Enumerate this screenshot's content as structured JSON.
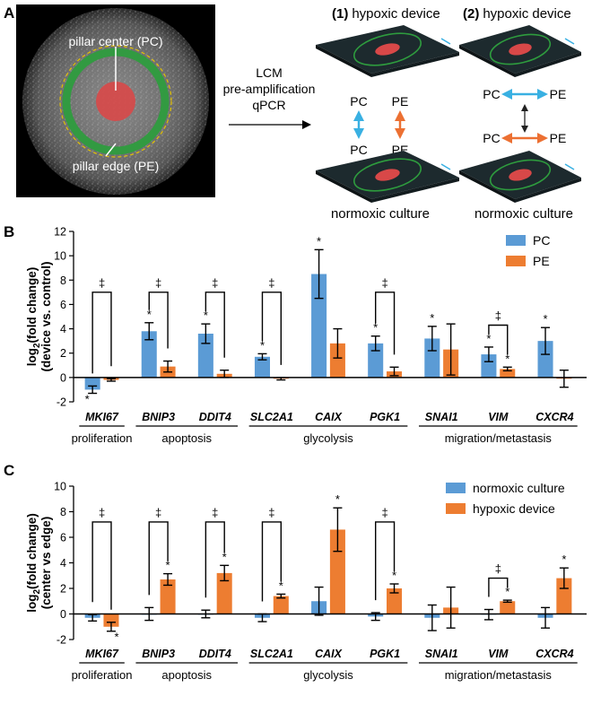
{
  "panel_a": {
    "letter": "A",
    "micrograph": {
      "pc_label": "pillar center (PC)",
      "pe_label": "pillar edge (PE)"
    },
    "process_lines": [
      "LCM",
      "pre-amplification",
      "qPCR"
    ],
    "scheme1": {
      "title_num": "(1)",
      "title": "hypoxic device",
      "bottom": "normoxic culture",
      "pc_top": "PC",
      "pe_top": "PE",
      "pc_bottom": "PC",
      "pe_bottom": "PE"
    },
    "scheme2": {
      "title_num": "(2)",
      "title": "hypoxic device",
      "bottom": "normoxic culture",
      "pc_top": "PC",
      "pe_top": "PE",
      "pc_bottom": "PC",
      "pe_bottom": "PE"
    },
    "colors": {
      "cyan": "#39b0e2",
      "orange": "#ec7032",
      "green": "#2f8f3c",
      "red": "#d23a3a"
    }
  },
  "chart_data": [
    {
      "panel": "B",
      "type": "bar",
      "ylabel_line1": "log2(fold change)",
      "ylabel_line2": "(device vs. control)",
      "ylim": [
        -2,
        12
      ],
      "yticks": [
        "-2",
        "0",
        "2",
        "4",
        "6",
        "8",
        "10",
        "12"
      ],
      "categories": [
        "MKI67",
        "BNIP3",
        "DDIT4",
        "SLC2A1",
        "CAIX",
        "PGK1",
        "SNAI1",
        "VIM",
        "CXCR4"
      ],
      "groups": [
        {
          "label": "proliferation",
          "from": 0,
          "to": 0
        },
        {
          "label": "apoptosis",
          "from": 1,
          "to": 2
        },
        {
          "label": "glycolysis",
          "from": 3,
          "to": 5
        },
        {
          "label": "migration/metastasis",
          "from": 6,
          "to": 8
        }
      ],
      "series": [
        {
          "name": "PC",
          "color": "#5b9bd5",
          "values": [
            -1.0,
            3.8,
            3.6,
            1.7,
            8.5,
            2.8,
            3.2,
            1.9,
            3.0
          ],
          "errors": [
            0.3,
            0.7,
            0.8,
            0.25,
            2.0,
            0.6,
            1.0,
            0.6,
            1.1
          ],
          "stars": [
            true,
            true,
            true,
            true,
            true,
            true,
            true,
            true,
            true
          ]
        },
        {
          "name": "PE",
          "color": "#ed7d31",
          "values": [
            -0.2,
            0.9,
            0.3,
            -0.1,
            2.8,
            0.5,
            2.3,
            0.7,
            -0.1
          ],
          "errors": [
            0.1,
            0.45,
            0.3,
            0.1,
            1.2,
            0.35,
            2.1,
            0.15,
            0.7
          ],
          "stars": [
            false,
            false,
            false,
            false,
            false,
            false,
            false,
            true,
            false
          ]
        }
      ],
      "brackets": [
        {
          "index": 0,
          "top": 7.0,
          "symbol": "‡"
        },
        {
          "index": 1,
          "top": 7.0,
          "symbol": "‡"
        },
        {
          "index": 2,
          "top": 7.0,
          "symbol": "‡"
        },
        {
          "index": 3,
          "top": 7.0,
          "symbol": "‡"
        },
        {
          "index": 5,
          "top": 7.0,
          "symbol": "‡"
        },
        {
          "index": 7,
          "top": 4.3,
          "symbol": "‡"
        }
      ],
      "star_symbol": "*",
      "legend_position": "top-right"
    },
    {
      "panel": "C",
      "type": "bar",
      "ylabel_line1": "log2(fold change)",
      "ylabel_line2": "(center vs edge)",
      "ylim": [
        -2,
        10
      ],
      "yticks": [
        "-2",
        "0",
        "2",
        "4",
        "6",
        "8",
        "10"
      ],
      "categories": [
        "MKI67",
        "BNIP3",
        "DDIT4",
        "SLC2A1",
        "CAIX",
        "PGK1",
        "SNAI1",
        "VIM",
        "CXCR4"
      ],
      "groups": [
        {
          "label": "proliferation",
          "from": 0,
          "to": 0
        },
        {
          "label": "apoptosis",
          "from": 1,
          "to": 2
        },
        {
          "label": "glycolysis",
          "from": 3,
          "to": 5
        },
        {
          "label": "migration/metastasis",
          "from": 6,
          "to": 8
        }
      ],
      "series": [
        {
          "name": "normoxic culture",
          "color": "#5b9bd5",
          "values": [
            -0.3,
            0.0,
            0.0,
            -0.3,
            1.0,
            -0.2,
            -0.3,
            -0.05,
            -0.3
          ],
          "errors": [
            0.25,
            0.5,
            0.3,
            0.3,
            1.1,
            0.3,
            1.0,
            0.4,
            0.8
          ],
          "stars": [
            false,
            false,
            false,
            false,
            false,
            false,
            false,
            false,
            false
          ]
        },
        {
          "name": "hypoxic device",
          "color": "#ed7d31",
          "values": [
            -1.0,
            2.7,
            3.2,
            1.4,
            6.6,
            2.0,
            0.5,
            1.0,
            2.8
          ],
          "errors": [
            0.35,
            0.45,
            0.6,
            0.15,
            1.7,
            0.35,
            1.6,
            0.08,
            0.8
          ],
          "stars": [
            true,
            true,
            true,
            true,
            true,
            true,
            false,
            true,
            true
          ]
        }
      ],
      "brackets": [
        {
          "index": 0,
          "top": 7.2,
          "symbol": "‡"
        },
        {
          "index": 1,
          "top": 7.2,
          "symbol": "‡"
        },
        {
          "index": 2,
          "top": 7.2,
          "symbol": "‡"
        },
        {
          "index": 3,
          "top": 7.2,
          "symbol": "‡"
        },
        {
          "index": 5,
          "top": 7.2,
          "symbol": "‡"
        },
        {
          "index": 7,
          "top": 2.8,
          "symbol": "‡"
        }
      ],
      "star_symbol": "*",
      "legend_position": "top-right"
    }
  ]
}
